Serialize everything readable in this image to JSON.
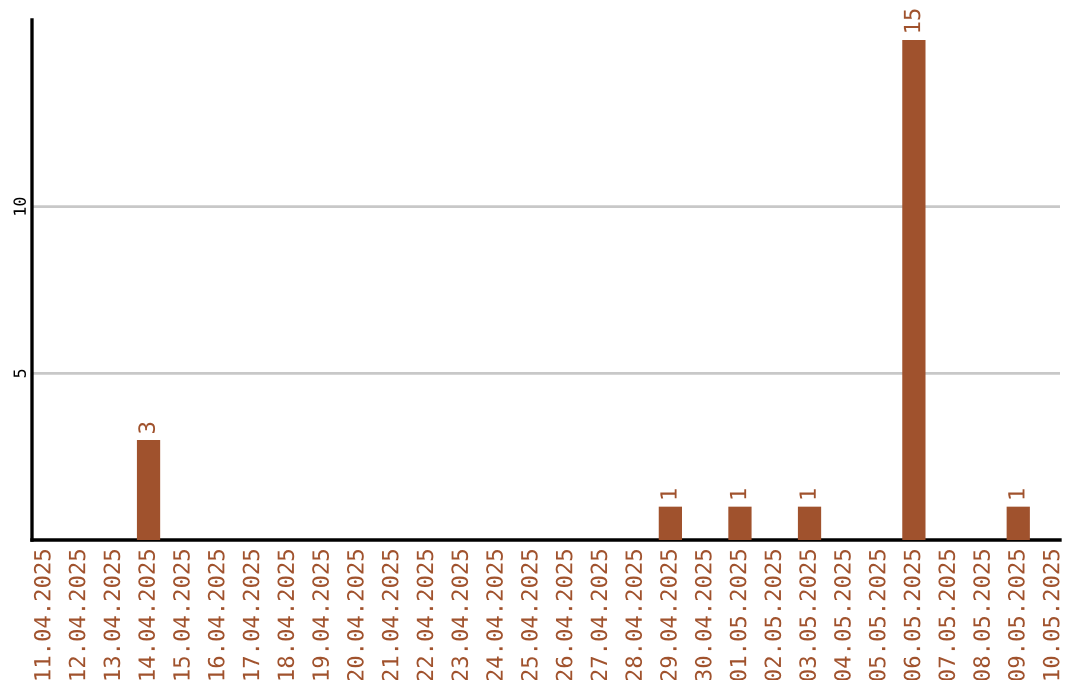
{
  "chart_data": {
    "type": "bar",
    "categories": [
      "11.04.2025",
      "12.04.2025",
      "13.04.2025",
      "14.04.2025",
      "15.04.2025",
      "16.04.2025",
      "17.04.2025",
      "18.04.2025",
      "19.04.2025",
      "20.04.2025",
      "21.04.2025",
      "22.04.2025",
      "23.04.2025",
      "24.04.2025",
      "25.04.2025",
      "26.04.2025",
      "27.04.2025",
      "28.04.2025",
      "29.04.2025",
      "30.04.2025",
      "01.05.2025",
      "02.05.2025",
      "03.05.2025",
      "04.05.2025",
      "05.05.2025",
      "06.05.2025",
      "07.05.2025",
      "08.05.2025",
      "09.05.2025",
      "10.05.2025"
    ],
    "values": [
      0,
      0,
      0,
      3,
      0,
      0,
      0,
      0,
      0,
      0,
      0,
      0,
      0,
      0,
      0,
      0,
      0,
      0,
      1,
      0,
      1,
      0,
      1,
      0,
      0,
      15,
      0,
      0,
      1,
      0
    ],
    "value_labels": [
      null,
      null,
      null,
      "3",
      null,
      null,
      null,
      null,
      null,
      null,
      null,
      null,
      null,
      null,
      null,
      null,
      null,
      null,
      "1",
      null,
      "1",
      null,
      "1",
      null,
      null,
      "15",
      null,
      null,
      "1",
      null
    ],
    "color": "#a0522d",
    "ylim": [
      0,
      15.6
    ],
    "yticks": [
      5,
      10
    ],
    "grid": "y"
  }
}
